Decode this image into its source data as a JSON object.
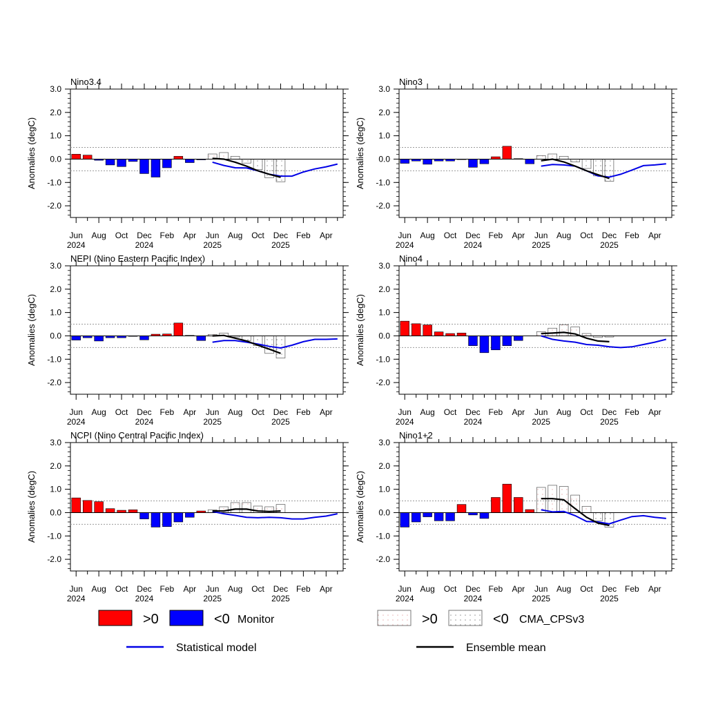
{
  "colors": {
    "positive": "#ff0000",
    "negative": "#0000ff",
    "statistical": "#0000e6",
    "ensemble": "#000000",
    "dotted_ref": "#999999",
    "forecast_dot_pos": "#d88",
    "forecast_dot_neg": "#666"
  },
  "chart_data": [
    {
      "type": "bar",
      "title": "Nino3.4",
      "ylabel": "Anomalies (degC)",
      "ylim": [
        -2.5,
        3.0
      ],
      "yticks": [
        "3.0",
        "2.0",
        "1.0",
        "0.0",
        "-1.0",
        "-2.0"
      ],
      "xtick_month": [
        "Jun",
        "Aug",
        "Oct",
        "Dec",
        "Feb",
        "Apr",
        "Jun",
        "Aug",
        "Oct",
        "Dec",
        "Feb",
        "Apr"
      ],
      "xtick_year": [
        "2024",
        "",
        "",
        "2024",
        "",
        "",
        "2025",
        "",
        "",
        "2025",
        "",
        ""
      ],
      "observed": [
        0.21,
        0.17,
        -0.05,
        -0.25,
        -0.32,
        -0.1,
        -0.62,
        -0.77,
        -0.37,
        0.12,
        -0.15,
        -0.03
      ],
      "forecast_bars": [
        0.22,
        0.28,
        0.12,
        -0.17,
        -0.45,
        -0.8,
        -0.97
      ],
      "ensemble_mean": [
        0.03,
        0.0,
        -0.13,
        -0.3,
        -0.5,
        -0.65,
        -0.78
      ],
      "statistical": [
        -0.13,
        -0.27,
        -0.37,
        -0.38,
        -0.5,
        -0.65,
        -0.73,
        -0.73,
        -0.55,
        -0.42,
        -0.33,
        -0.21
      ]
    },
    {
      "type": "bar",
      "title": "Nino3",
      "ylabel": "Anomalies (degC)",
      "ylim": [
        -2.5,
        3.0
      ],
      "yticks": [
        "3.0",
        "2.0",
        "1.0",
        "0.0",
        "-1.0",
        "-2.0"
      ],
      "xtick_month": [
        "Jun",
        "Aug",
        "Oct",
        "Dec",
        "Feb",
        "Apr",
        "Jun",
        "Aug",
        "Oct",
        "Dec",
        "Feb",
        "Apr"
      ],
      "xtick_year": [
        "2024",
        "",
        "",
        "2024",
        "",
        "",
        "2025",
        "",
        "",
        "2025",
        "",
        ""
      ],
      "observed": [
        -0.18,
        -0.08,
        -0.22,
        -0.08,
        -0.08,
        -0.02,
        -0.35,
        -0.2,
        0.1,
        0.55,
        0.02,
        -0.2
      ],
      "forecast_bars": [
        0.15,
        0.22,
        0.12,
        -0.12,
        -0.4,
        -0.72,
        -0.95
      ],
      "ensemble_mean": [
        -0.07,
        0.0,
        -0.12,
        -0.3,
        -0.5,
        -0.67,
        -0.83
      ],
      "statistical": [
        -0.3,
        -0.23,
        -0.25,
        -0.3,
        -0.5,
        -0.72,
        -0.77,
        -0.65,
        -0.47,
        -0.28,
        -0.25,
        -0.2
      ]
    },
    {
      "type": "bar",
      "title": "NEPI (Nino Eastern Pacific Index)",
      "ylabel": "Anomalies (degC)",
      "ylim": [
        -2.5,
        3.0
      ],
      "yticks": [
        "3.0",
        "2.0",
        "1.0",
        "0.0",
        "-1.0",
        "-2.0"
      ],
      "xtick_month": [
        "Jun",
        "Aug",
        "Oct",
        "Dec",
        "Feb",
        "Apr",
        "Jun",
        "Aug",
        "Oct",
        "Dec",
        "Feb",
        "Apr"
      ],
      "xtick_year": [
        "2024",
        "",
        "",
        "2024",
        "",
        "",
        "2025",
        "",
        "",
        "2025",
        "",
        ""
      ],
      "observed": [
        -0.18,
        -0.08,
        -0.22,
        -0.08,
        -0.08,
        -0.02,
        -0.17,
        0.07,
        0.08,
        0.55,
        0.02,
        -0.2
      ],
      "forecast_bars": [
        0.06,
        0.12,
        -0.05,
        -0.2,
        -0.42,
        -0.75,
        -0.95
      ],
      "ensemble_mean": [
        0.0,
        0.02,
        -0.1,
        -0.22,
        -0.4,
        -0.57,
        -0.75
      ],
      "statistical": [
        -0.27,
        -0.2,
        -0.2,
        -0.27,
        -0.35,
        -0.45,
        -0.52,
        -0.4,
        -0.25,
        -0.15,
        -0.15,
        -0.13
      ]
    },
    {
      "type": "bar",
      "title": "Nino4",
      "ylabel": "Anomalies (degC)",
      "ylim": [
        -2.5,
        3.0
      ],
      "yticks": [
        "3.0",
        "2.0",
        "1.0",
        "0.0",
        "-1.0",
        "-2.0"
      ],
      "xtick_month": [
        "Jun",
        "Aug",
        "Oct",
        "Dec",
        "Feb",
        "Apr",
        "Jun",
        "Aug",
        "Oct",
        "Dec",
        "Feb",
        "Apr"
      ],
      "xtick_year": [
        "2024",
        "",
        "",
        "2024",
        "",
        "",
        "2025",
        "",
        "",
        "2025",
        "",
        ""
      ],
      "observed": [
        0.63,
        0.52,
        0.47,
        0.17,
        0.1,
        0.12,
        -0.42,
        -0.72,
        -0.6,
        -0.42,
        -0.2,
        0.0
      ],
      "forecast_bars": [
        0.18,
        0.33,
        0.48,
        0.38,
        0.1,
        -0.07,
        -0.05
      ],
      "ensemble_mean": [
        0.1,
        0.12,
        0.15,
        0.08,
        -0.1,
        -0.22,
        -0.25
      ],
      "statistical": [
        0.0,
        -0.15,
        -0.22,
        -0.27,
        -0.37,
        -0.4,
        -0.47,
        -0.5,
        -0.47,
        -0.37,
        -0.27,
        -0.15
      ]
    },
    {
      "type": "bar",
      "title": "NCPI (Nino Central Pacific Index)",
      "ylabel": "Anomalies (degC)",
      "ylim": [
        -2.5,
        3.0
      ],
      "yticks": [
        "3.0",
        "2.0",
        "1.0",
        "0.0",
        "-1.0",
        "-2.0"
      ],
      "xtick_month": [
        "Jun",
        "Aug",
        "Oct",
        "Dec",
        "Feb",
        "Apr",
        "Jun",
        "Aug",
        "Oct",
        "Dec",
        "Feb",
        "Apr"
      ],
      "xtick_year": [
        "2024",
        "",
        "",
        "2024",
        "",
        "",
        "2025",
        "",
        "",
        "2025",
        "",
        ""
      ],
      "observed": [
        0.63,
        0.52,
        0.47,
        0.17,
        0.1,
        0.12,
        -0.27,
        -0.62,
        -0.6,
        -0.4,
        -0.2,
        0.07
      ],
      "forecast_bars": [
        0.12,
        0.25,
        0.43,
        0.43,
        0.28,
        0.25,
        0.35
      ],
      "ensemble_mean": [
        0.07,
        0.07,
        0.15,
        0.15,
        0.07,
        0.05,
        0.07
      ],
      "statistical": [
        0.05,
        -0.05,
        -0.12,
        -0.2,
        -0.22,
        -0.2,
        -0.22,
        -0.27,
        -0.27,
        -0.2,
        -0.15,
        -0.05
      ]
    },
    {
      "type": "bar",
      "title": "Nino1+2",
      "ylabel": "Anomalies (degC)",
      "ylim": [
        -2.5,
        3.0
      ],
      "yticks": [
        "3.0",
        "2.0",
        "1.0",
        "0.0",
        "-1.0",
        "-2.0"
      ],
      "xtick_month": [
        "Jun",
        "Aug",
        "Oct",
        "Dec",
        "Feb",
        "Apr",
        "Jun",
        "Aug",
        "Oct",
        "Dec",
        "Feb",
        "Apr"
      ],
      "xtick_year": [
        "2024",
        "",
        "",
        "2024",
        "",
        "",
        "2025",
        "",
        "",
        "2025",
        "",
        ""
      ],
      "observed": [
        -0.62,
        -0.4,
        -0.18,
        -0.35,
        -0.35,
        0.35,
        -0.1,
        -0.25,
        0.65,
        1.22,
        0.65,
        0.13
      ],
      "forecast_bars": [
        1.08,
        1.17,
        1.12,
        0.75,
        0.27,
        -0.35,
        -0.62
      ],
      "ensemble_mean": [
        0.6,
        0.6,
        0.55,
        0.17,
        -0.2,
        -0.45,
        -0.55
      ],
      "statistical": [
        0.12,
        0.03,
        0.05,
        -0.13,
        -0.38,
        -0.4,
        -0.48,
        -0.32,
        -0.17,
        -0.13,
        -0.2,
        -0.25
      ]
    }
  ],
  "legend": {
    "monitor": {
      "pos": ">0",
      "neg": "<0",
      "label": "Monitor"
    },
    "cma": {
      "pos": ">0",
      "neg": "<0",
      "label": "CMA_CPSv3"
    },
    "statistical_label": "Statistical model",
    "ensemble_label": "Ensemble mean"
  }
}
